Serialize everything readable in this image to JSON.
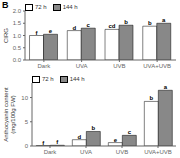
{
  "chart_data": [
    {
      "type": "bar",
      "y_label": "CIRG",
      "categories": [
        "Dark",
        "UVA",
        "UVB",
        "UVA+UVB"
      ],
      "series": [
        {
          "name": "72 h",
          "color": "#ffffff",
          "values": [
            1.0,
            1.2,
            1.25,
            1.38
          ],
          "labels": [
            "f",
            "d",
            "cd",
            "b"
          ]
        },
        {
          "name": "144 h",
          "color": "#888888",
          "values": [
            1.05,
            1.3,
            1.42,
            1.5
          ],
          "labels": [
            "e",
            "c",
            "b",
            "a"
          ]
        }
      ],
      "edge_color": "#000000",
      "ylim": [
        0,
        2
      ],
      "yticks": [
        {
          "value": 0,
          "label": "0.0"
        },
        {
          "value": 0.5,
          "label": "0.5"
        },
        {
          "value": 1.0,
          "label": "1.0"
        },
        {
          "value": 1.5,
          "label": "1.5"
        },
        {
          "value": 2.0,
          "label": "2.0"
        }
      ],
      "legend": "upper left",
      "grid": false,
      "annotations": [
        "B"
      ]
    },
    {
      "type": "bar",
      "y_label": "Anthocyanin content\n(mg/100g FW)",
      "categories": [
        "Dark",
        "UVA",
        "UVB",
        "UVA+UVB"
      ],
      "series": [
        {
          "name": "72 h",
          "color": "#ffffff",
          "values": [
            0.1,
            1.3,
            0.7,
            9.2
          ],
          "labels": [
            "f",
            "d",
            "e",
            "b"
          ]
        },
        {
          "name": "144 h",
          "color": "#888888",
          "values": [
            0.15,
            3.0,
            2.2,
            11.5
          ],
          "labels": [
            "f",
            "b",
            "c",
            "a"
          ]
        }
      ],
      "edge_color": "#000000",
      "ylim": [
        0,
        13
      ],
      "yticks": [
        0,
        5,
        10
      ],
      "legend": "upper left",
      "grid": false
    }
  ]
}
